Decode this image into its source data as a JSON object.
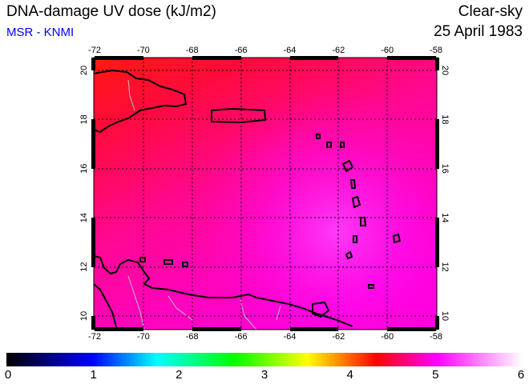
{
  "header": {
    "title": "DNA-damage UV dose (kJ/m2)",
    "source": "MSR - KNMI",
    "sky_condition": "Clear-sky",
    "date": "25 April 1983"
  },
  "map": {
    "region": "Caribbean",
    "lon_ticks": [
      "-72",
      "-70",
      "-68",
      "-66",
      "-64",
      "-62",
      "-60",
      "-58"
    ],
    "lat_ticks": [
      "20",
      "18",
      "16",
      "14",
      "12",
      "10"
    ],
    "lon_values": [
      -72,
      -70,
      -68,
      -66,
      -64,
      -62,
      -60,
      -58
    ],
    "lat_values": [
      20,
      18,
      16,
      14,
      12,
      10
    ]
  },
  "colorbar": {
    "labels": [
      "0",
      "1",
      "2",
      "3",
      "4",
      "5",
      "6"
    ],
    "range": [
      0,
      6
    ],
    "stops": [
      {
        "value": 0,
        "color": "#000000"
      },
      {
        "value": 1,
        "color": "#0000ff"
      },
      {
        "value": 1.75,
        "color": "#00ffff"
      },
      {
        "value": 2.65,
        "color": "#00ff00"
      },
      {
        "value": 3.5,
        "color": "#ffff00"
      },
      {
        "value": 4.3,
        "color": "#ff0000"
      },
      {
        "value": 5.0,
        "color": "#ff00ff"
      },
      {
        "value": 6,
        "color": "#ffffff"
      }
    ]
  }
}
